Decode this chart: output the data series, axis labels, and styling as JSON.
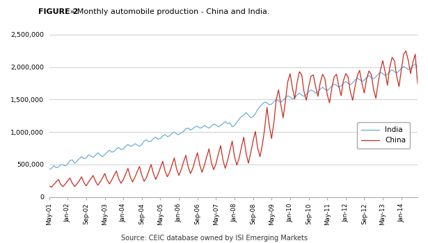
{
  "title_bold": "FIGURE 2",
  "title_rest": " » Monthly automobile production - China and India.",
  "source_text": "Source: CEIC database owned by ISI Emerging Markets",
  "india_color": "#6BAED6",
  "china_color": "#CB2B1E",
  "ylim": [
    0,
    2500000
  ],
  "yticks": [
    0,
    500000,
    1000000,
    1500000,
    2000000,
    2500000
  ],
  "xtick_labels": [
    "May-01",
    "Jan-02",
    "Sep-02",
    "May-03",
    "Jan-04",
    "Sep-04",
    "May-05",
    "Jan-06",
    "Sep-06",
    "May-07",
    "Jan-08",
    "Sep-08",
    "May-09",
    "Jan-10",
    "Sep-10",
    "May-11",
    "Jan-12",
    "Sep-12",
    "May-13",
    "Jan-14"
  ],
  "india_values": [
    420000,
    440000,
    480000,
    450000,
    460000,
    500000,
    490000,
    480000,
    510000,
    560000,
    570000,
    520000,
    550000,
    590000,
    620000,
    590000,
    600000,
    650000,
    630000,
    610000,
    640000,
    680000,
    650000,
    620000,
    650000,
    690000,
    720000,
    690000,
    700000,
    740000,
    760000,
    730000,
    740000,
    780000,
    810000,
    780000,
    790000,
    820000,
    800000,
    780000,
    810000,
    860000,
    880000,
    850000,
    860000,
    900000,
    920000,
    890000,
    900000,
    940000,
    960000,
    930000,
    940000,
    980000,
    1000000,
    970000,
    960000,
    990000,
    1010000,
    1050000,
    1060000,
    1030000,
    1050000,
    1080000,
    1090000,
    1060000,
    1070000,
    1100000,
    1080000,
    1060000,
    1090000,
    1120000,
    1110000,
    1080000,
    1100000,
    1130000,
    1160000,
    1130000,
    1140000,
    1080000,
    1100000,
    1150000,
    1200000,
    1240000,
    1260000,
    1300000,
    1260000,
    1220000,
    1240000,
    1280000,
    1350000,
    1390000,
    1430000,
    1460000,
    1450000,
    1420000,
    1430000,
    1470000,
    1500000,
    1480000,
    1460000,
    1490000,
    1530000,
    1560000,
    1540000,
    1510000,
    1530000,
    1570000,
    1600000,
    1570000,
    1550000,
    1580000,
    1620000,
    1650000,
    1630000,
    1600000,
    1620000,
    1660000,
    1690000,
    1660000,
    1640000,
    1670000,
    1710000,
    1740000,
    1720000,
    1690000,
    1710000,
    1750000,
    1780000,
    1750000,
    1730000,
    1760000,
    1800000,
    1830000,
    1810000,
    1780000,
    1800000,
    1840000,
    1870000,
    1840000,
    1820000,
    1850000,
    1890000,
    1920000,
    1900000,
    1870000,
    1890000,
    1930000,
    1960000,
    1930000,
    1910000,
    1940000,
    1980000,
    2010000,
    1990000,
    1960000,
    1980000,
    2020000,
    2050000,
    2000000
  ],
  "china_values": [
    170000,
    150000,
    190000,
    230000,
    270000,
    190000,
    160000,
    200000,
    250000,
    290000,
    210000,
    160000,
    200000,
    250000,
    310000,
    220000,
    170000,
    230000,
    280000,
    330000,
    240000,
    180000,
    230000,
    290000,
    360000,
    260000,
    200000,
    260000,
    330000,
    400000,
    280000,
    210000,
    270000,
    350000,
    440000,
    310000,
    230000,
    300000,
    390000,
    470000,
    330000,
    240000,
    300000,
    400000,
    500000,
    360000,
    270000,
    350000,
    450000,
    550000,
    400000,
    310000,
    380000,
    490000,
    600000,
    430000,
    330000,
    420000,
    540000,
    640000,
    460000,
    360000,
    440000,
    570000,
    680000,
    490000,
    380000,
    490000,
    620000,
    740000,
    530000,
    420000,
    510000,
    660000,
    790000,
    570000,
    440000,
    560000,
    710000,
    860000,
    620000,
    490000,
    600000,
    770000,
    920000,
    670000,
    520000,
    680000,
    860000,
    1010000,
    750000,
    620000,
    800000,
    1050000,
    1380000,
    1100000,
    900000,
    1150000,
    1500000,
    1650000,
    1420000,
    1220000,
    1490000,
    1780000,
    1900000,
    1680000,
    1510000,
    1760000,
    1930000,
    1880000,
    1620000,
    1490000,
    1700000,
    1860000,
    1880000,
    1700000,
    1550000,
    1760000,
    1890000,
    1820000,
    1580000,
    1450000,
    1680000,
    1850000,
    1890000,
    1710000,
    1560000,
    1790000,
    1900000,
    1850000,
    1620000,
    1490000,
    1700000,
    1870000,
    1950000,
    1750000,
    1600000,
    1820000,
    1940000,
    1890000,
    1660000,
    1520000,
    1760000,
    1960000,
    2100000,
    1930000,
    1720000,
    2000000,
    2150000,
    2100000,
    1860000,
    1700000,
    1960000,
    2200000,
    2250000,
    2100000,
    1900000,
    2080000,
    2200000,
    1750000
  ]
}
